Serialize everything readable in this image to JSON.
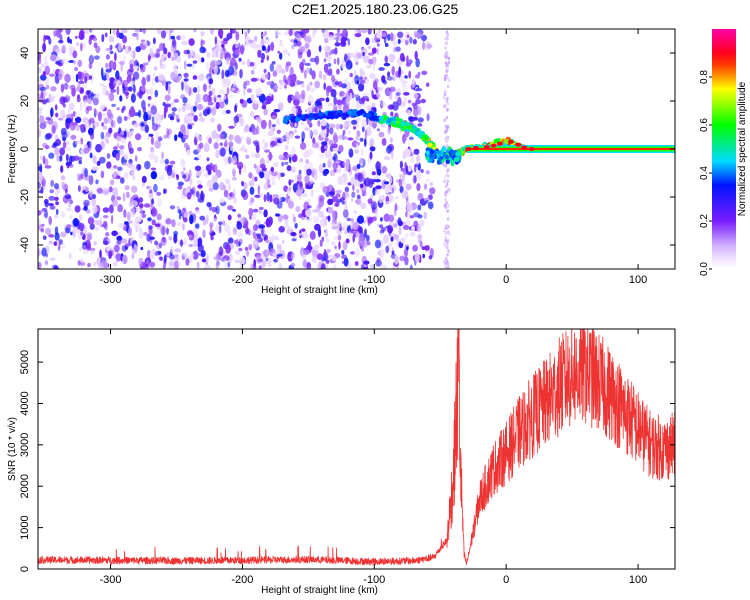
{
  "title": "C2E1.2025.180.23.06.G25",
  "chart_data": [
    {
      "type": "heatmap",
      "xlabel": "Height of straight line (km)",
      "ylabel": "Frequency (Hz)",
      "xlim": [
        -355,
        128
      ],
      "ylim": [
        -50,
        50
      ],
      "xticks": [
        -300,
        -200,
        -100,
        0,
        100
      ],
      "yticks": [
        -40,
        -20,
        0,
        20,
        40
      ],
      "grid": false,
      "colorbar": {
        "label": "Normalized spectral amplitude",
        "range": [
          0,
          1
        ],
        "ticks": [
          "0.0",
          "0.2",
          "0.4",
          "0.6",
          "0.8"
        ],
        "colormap": "rainbow (white→violet→blue→cyan→green→yellow→red→magenta)"
      },
      "noise_region_x": [
        -355,
        -65
      ],
      "signal_track": [
        {
          "x": -168,
          "f": 12
        },
        {
          "x": -138,
          "f": 14
        },
        {
          "x": -110,
          "f": 15
        },
        {
          "x": -85,
          "f": 11
        },
        {
          "x": -72,
          "f": 9
        },
        {
          "x": -62,
          "f": 5
        },
        {
          "x": -54,
          "f": 0
        },
        {
          "x": -48,
          "f": -4
        },
        {
          "x": -40,
          "f": -3
        },
        {
          "x": -30,
          "f": 0
        },
        {
          "x": -15,
          "f": 1
        },
        {
          "x": 0,
          "f": 3
        },
        {
          "x": 15,
          "f": 0
        },
        {
          "x": 128,
          "f": 0
        }
      ],
      "carrier_line": {
        "x_start": -30,
        "x_end": 128,
        "f": 0
      }
    },
    {
      "type": "line",
      "xlabel": "Height of straight line (km)",
      "ylabel": "SNR (10 * v/v)",
      "xlim": [
        -355,
        128
      ],
      "ylim": [
        0,
        5800
      ],
      "xticks": [
        -300,
        -200,
        -100,
        0,
        100
      ],
      "yticks": [
        0,
        1000,
        2000,
        3000,
        4000,
        5000
      ],
      "grid": false,
      "series": [
        {
          "color": "#ee3333",
          "x": [
            -355,
            -300,
            -250,
            -200,
            -150,
            -100,
            -70,
            -55,
            -45,
            -40,
            -37,
            -36,
            -35,
            -32,
            -30,
            -25,
            -20,
            -10,
            0,
            10,
            20,
            30,
            40,
            50,
            60,
            70,
            80,
            90,
            100,
            110,
            120,
            128
          ],
          "y": [
            220,
            210,
            200,
            210,
            230,
            180,
            200,
            280,
            700,
            2200,
            4200,
            5700,
            2800,
            350,
            120,
            900,
            1700,
            2400,
            2800,
            3300,
            3700,
            4000,
            4400,
            4700,
            4800,
            4500,
            4200,
            3800,
            3400,
            3000,
            2900,
            3000
          ]
        }
      ]
    }
  ]
}
